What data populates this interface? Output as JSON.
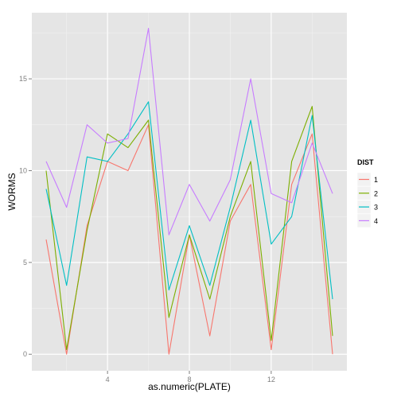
{
  "chart_data": {
    "type": "line",
    "xlabel": "as.numeric(PLATE)",
    "ylabel": "WORMS",
    "xlim": [
      0.3,
      15.7
    ],
    "ylim": [
      -0.9,
      18.6
    ],
    "x_ticks": [
      4,
      8,
      12
    ],
    "y_ticks": [
      0,
      5,
      10,
      15
    ],
    "x": [
      1,
      2,
      3,
      4,
      5,
      6,
      7,
      8,
      9,
      10,
      11,
      12,
      13,
      14,
      15
    ],
    "grid": true,
    "legend": {
      "title": "DIST",
      "placement": "right",
      "entries": [
        "1",
        "2",
        "3",
        "4"
      ]
    },
    "series": [
      {
        "name": "1",
        "color": "#F8766D",
        "values": [
          6.25,
          0,
          7,
          10.5,
          10,
          12.5,
          0,
          6.5,
          1,
          7.25,
          9.25,
          0.25,
          9.25,
          12,
          0
        ]
      },
      {
        "name": "2",
        "color": "#7CAE00",
        "values": [
          10,
          0.25,
          6.75,
          12,
          11.25,
          12.75,
          2,
          6.5,
          3,
          7.5,
          10.5,
          0.75,
          10.5,
          13.5,
          1
        ]
      },
      {
        "name": "3",
        "color": "#00BFC4",
        "values": [
          9,
          3.75,
          10.75,
          10.5,
          12,
          13.75,
          3.5,
          7,
          3.75,
          8,
          12.75,
          6,
          7.5,
          13,
          3
        ]
      },
      {
        "name": "4",
        "color": "#C77CFF",
        "values": [
          10.5,
          8,
          12.5,
          11.5,
          11.75,
          17.75,
          6.5,
          9.25,
          7.25,
          9.5,
          15,
          8.75,
          8.25,
          11.5,
          8.75
        ]
      }
    ]
  }
}
